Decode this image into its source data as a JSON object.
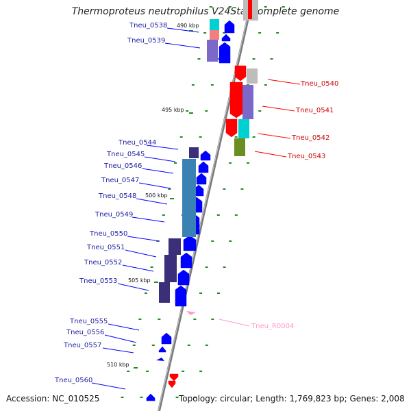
{
  "title": "Thermoproteus neutrophilus V24Sta, complete genome",
  "accession": "Accession: NC_010525",
  "summary": "Topology: circular; Length: 1,769,823 bp; Genes: 2,008",
  "ticks": [
    "490 kbp",
    "495 kbp",
    "500 kbp",
    "505 kbp",
    "510 kbp"
  ],
  "genes_left": [
    "Tneu_0538",
    "Tneu_0539",
    "Tneu_0544",
    "Tneu_0545",
    "Tneu_0546",
    "Tneu_0547",
    "Tneu_0548",
    "Tneu_0549",
    "Tneu_0550",
    "Tneu_0551",
    "Tneu_0552",
    "Tneu_0553",
    "Tneu_0555",
    "Tneu_0556",
    "Tneu_0557",
    "Tneu_0560"
  ],
  "genes_right": [
    "Tneu_0540",
    "Tneu_0541",
    "Tneu_0542",
    "Tneu_0543"
  ],
  "rna_genes": [
    "Tneu_R0004"
  ],
  "colors": {
    "forward": "#0000ff",
    "reverse": "#ff0000",
    "rna": "#ff99cc",
    "axis": "#888888",
    "tick_dots": "#228B22",
    "cog_purple": "#7b68c8",
    "cog_cyan": "#00d0d0",
    "cog_grey": "#bdbdbd",
    "cog_olive": "#6b8e23",
    "cog_navy": "#3b2f7a",
    "cog_teal": "#3b82b4",
    "cog_pink": "#f08080"
  }
}
